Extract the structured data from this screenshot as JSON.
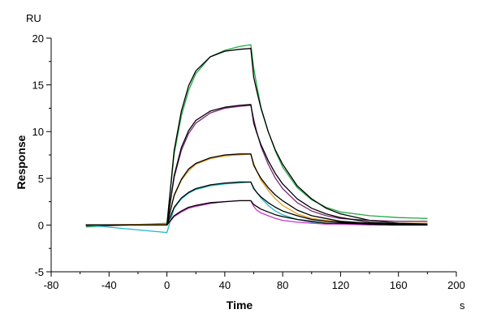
{
  "chart_data": {
    "type": "line",
    "title": "",
    "xlabel": "Time",
    "ylabel": "Response",
    "x_unit": "s",
    "y_unit": "RU",
    "xlim": [
      -80,
      200
    ],
    "ylim": [
      -5,
      20
    ],
    "x_ticks": [
      -80,
      -40,
      0,
      40,
      80,
      120,
      160,
      200
    ],
    "y_ticks": [
      -5,
      0,
      5,
      10,
      15,
      20
    ],
    "x_tick_labels": [
      "-80",
      "-40",
      "0",
      "40",
      "80",
      "120",
      "160",
      "200"
    ],
    "y_tick_labels": [
      "-5",
      "0",
      "5",
      "10",
      "15",
      "20"
    ],
    "grid": false,
    "legend": "none",
    "association_start": 0,
    "dissociation_start": 60,
    "end_time": 180,
    "baseline_start": -56,
    "series": [
      {
        "color": "#22aa44",
        "values": [
          [
            -56,
            -0.2
          ],
          [
            0,
            0.2
          ],
          [
            5,
            7.6
          ],
          [
            10,
            11.7
          ],
          [
            15,
            14.4
          ],
          [
            20,
            16.2
          ],
          [
            30,
            18.0
          ],
          [
            40,
            18.7
          ],
          [
            50,
            19.1
          ],
          [
            58,
            19.3
          ],
          [
            60,
            16.8
          ],
          [
            62,
            15.0
          ],
          [
            65,
            12.6
          ],
          [
            70,
            10.0
          ],
          [
            75,
            7.9
          ],
          [
            80,
            6.2
          ],
          [
            90,
            4.0
          ],
          [
            100,
            2.7
          ],
          [
            110,
            1.9
          ],
          [
            120,
            1.4
          ],
          [
            140,
            1.0
          ],
          [
            160,
            0.8
          ],
          [
            180,
            0.7
          ]
        ]
      },
      {
        "color": "#7a2a7a",
        "values": [
          [
            -56,
            -0.1
          ],
          [
            0,
            0.1
          ],
          [
            5,
            5.1
          ],
          [
            10,
            8.0
          ],
          [
            15,
            9.8
          ],
          [
            20,
            10.9
          ],
          [
            30,
            12.0
          ],
          [
            40,
            12.5
          ],
          [
            50,
            12.7
          ],
          [
            58,
            12.8
          ],
          [
            60,
            11.3
          ],
          [
            62,
            10.0
          ],
          [
            65,
            8.4
          ],
          [
            70,
            6.5
          ],
          [
            75,
            5.0
          ],
          [
            80,
            3.9
          ],
          [
            90,
            2.4
          ],
          [
            100,
            1.5
          ],
          [
            110,
            1.0
          ],
          [
            120,
            0.7
          ],
          [
            140,
            0.5
          ],
          [
            160,
            0.4
          ],
          [
            180,
            0.4
          ]
        ]
      },
      {
        "color": "#e6a020",
        "values": [
          [
            -56,
            0.0
          ],
          [
            0,
            0.1
          ],
          [
            5,
            3.1
          ],
          [
            10,
            4.8
          ],
          [
            15,
            5.8
          ],
          [
            20,
            6.5
          ],
          [
            30,
            7.1
          ],
          [
            40,
            7.4
          ],
          [
            50,
            7.5
          ],
          [
            58,
            7.6
          ],
          [
            60,
            6.6
          ],
          [
            62,
            5.8
          ],
          [
            65,
            4.8
          ],
          [
            70,
            3.7
          ],
          [
            75,
            2.8
          ],
          [
            80,
            2.1
          ],
          [
            90,
            1.2
          ],
          [
            100,
            0.7
          ],
          [
            110,
            0.5
          ],
          [
            120,
            0.3
          ],
          [
            140,
            0.2
          ],
          [
            160,
            0.2
          ],
          [
            180,
            0.2
          ]
        ]
      },
      {
        "color": "#20b8c8",
        "values": [
          [
            -56,
            0.0
          ],
          [
            0,
            -0.8
          ],
          [
            5,
            1.8
          ],
          [
            10,
            2.8
          ],
          [
            15,
            3.4
          ],
          [
            20,
            3.8
          ],
          [
            30,
            4.2
          ],
          [
            40,
            4.4
          ],
          [
            50,
            4.5
          ],
          [
            58,
            4.6
          ],
          [
            60,
            4.0
          ],
          [
            62,
            3.5
          ],
          [
            65,
            2.9
          ],
          [
            70,
            2.1
          ],
          [
            75,
            1.5
          ],
          [
            80,
            1.1
          ],
          [
            90,
            0.6
          ],
          [
            100,
            0.3
          ],
          [
            110,
            0.2
          ],
          [
            120,
            0.1
          ],
          [
            140,
            0.1
          ],
          [
            160,
            0.1
          ],
          [
            180,
            0.1
          ]
        ]
      },
      {
        "color": "#cc33cc",
        "values": [
          [
            -56,
            0.0
          ],
          [
            0,
            0.0
          ],
          [
            5,
            0.9
          ],
          [
            10,
            1.4
          ],
          [
            15,
            1.8
          ],
          [
            20,
            2.0
          ],
          [
            30,
            2.3
          ],
          [
            40,
            2.5
          ],
          [
            50,
            2.6
          ],
          [
            58,
            2.6
          ],
          [
            60,
            2.0
          ],
          [
            62,
            1.6
          ],
          [
            65,
            1.3
          ],
          [
            70,
            1.0
          ],
          [
            75,
            0.7
          ],
          [
            80,
            0.5
          ],
          [
            90,
            0.3
          ],
          [
            100,
            0.2
          ],
          [
            110,
            0.1
          ],
          [
            120,
            0.1
          ],
          [
            140,
            0.0
          ],
          [
            160,
            0.0
          ],
          [
            180,
            0.0
          ]
        ]
      },
      {
        "color": "#000000",
        "values": [
          [
            -56,
            0.0
          ],
          [
            0,
            0.0
          ],
          [
            5,
            8.0
          ],
          [
            10,
            12.2
          ],
          [
            15,
            14.9
          ],
          [
            20,
            16.5
          ],
          [
            30,
            18.0
          ],
          [
            40,
            18.6
          ],
          [
            50,
            18.8
          ],
          [
            58,
            18.9
          ],
          [
            60,
            15.8
          ],
          [
            62,
            14.4
          ],
          [
            65,
            12.5
          ],
          [
            70,
            10.0
          ],
          [
            75,
            8.0
          ],
          [
            80,
            6.5
          ],
          [
            90,
            4.2
          ],
          [
            100,
            2.8
          ],
          [
            110,
            1.8
          ],
          [
            120,
            1.2
          ],
          [
            140,
            0.5
          ],
          [
            160,
            0.2
          ],
          [
            180,
            0.1
          ]
        ]
      },
      {
        "color": "#000000",
        "values": [
          [
            -56,
            0.0
          ],
          [
            0,
            0.0
          ],
          [
            5,
            5.3
          ],
          [
            10,
            8.3
          ],
          [
            15,
            10.1
          ],
          [
            20,
            11.2
          ],
          [
            30,
            12.2
          ],
          [
            40,
            12.6
          ],
          [
            50,
            12.8
          ],
          [
            58,
            12.9
          ],
          [
            60,
            10.9
          ],
          [
            62,
            9.9
          ],
          [
            65,
            8.6
          ],
          [
            70,
            6.9
          ],
          [
            75,
            5.5
          ],
          [
            80,
            4.4
          ],
          [
            90,
            2.8
          ],
          [
            100,
            1.8
          ],
          [
            110,
            1.2
          ],
          [
            120,
            0.8
          ],
          [
            140,
            0.3
          ],
          [
            160,
            0.1
          ],
          [
            180,
            0.1
          ]
        ]
      },
      {
        "color": "#000000",
        "values": [
          [
            -56,
            0.0
          ],
          [
            0,
            0.0
          ],
          [
            5,
            3.2
          ],
          [
            10,
            4.9
          ],
          [
            15,
            6.0
          ],
          [
            20,
            6.6
          ],
          [
            30,
            7.2
          ],
          [
            40,
            7.5
          ],
          [
            50,
            7.6
          ],
          [
            58,
            7.6
          ],
          [
            60,
            6.4
          ],
          [
            62,
            5.8
          ],
          [
            65,
            5.0
          ],
          [
            70,
            4.0
          ],
          [
            75,
            3.2
          ],
          [
            80,
            2.6
          ],
          [
            90,
            1.6
          ],
          [
            100,
            1.0
          ],
          [
            110,
            0.7
          ],
          [
            120,
            0.4
          ],
          [
            140,
            0.2
          ],
          [
            160,
            0.1
          ],
          [
            180,
            0.0
          ]
        ]
      },
      {
        "color": "#000000",
        "values": [
          [
            -56,
            0.0
          ],
          [
            0,
            0.0
          ],
          [
            5,
            1.9
          ],
          [
            10,
            2.9
          ],
          [
            15,
            3.5
          ],
          [
            20,
            3.9
          ],
          [
            30,
            4.3
          ],
          [
            40,
            4.5
          ],
          [
            50,
            4.6
          ],
          [
            58,
            4.6
          ],
          [
            60,
            3.9
          ],
          [
            62,
            3.5
          ],
          [
            65,
            3.0
          ],
          [
            70,
            2.4
          ],
          [
            75,
            1.9
          ],
          [
            80,
            1.5
          ],
          [
            90,
            1.0
          ],
          [
            100,
            0.6
          ],
          [
            110,
            0.4
          ],
          [
            120,
            0.3
          ],
          [
            140,
            0.1
          ],
          [
            160,
            0.0
          ],
          [
            180,
            0.0
          ]
        ]
      },
      {
        "color": "#000000",
        "values": [
          [
            -56,
            0.0
          ],
          [
            0,
            0.0
          ],
          [
            5,
            1.0
          ],
          [
            10,
            1.5
          ],
          [
            15,
            1.9
          ],
          [
            20,
            2.1
          ],
          [
            30,
            2.4
          ],
          [
            40,
            2.5
          ],
          [
            50,
            2.6
          ],
          [
            58,
            2.6
          ],
          [
            60,
            2.2
          ],
          [
            62,
            2.0
          ],
          [
            65,
            1.7
          ],
          [
            70,
            1.4
          ],
          [
            75,
            1.1
          ],
          [
            80,
            0.9
          ],
          [
            90,
            0.6
          ],
          [
            100,
            0.4
          ],
          [
            110,
            0.2
          ],
          [
            120,
            0.2
          ],
          [
            140,
            0.1
          ],
          [
            160,
            0.0
          ],
          [
            180,
            0.0
          ]
        ]
      }
    ]
  }
}
